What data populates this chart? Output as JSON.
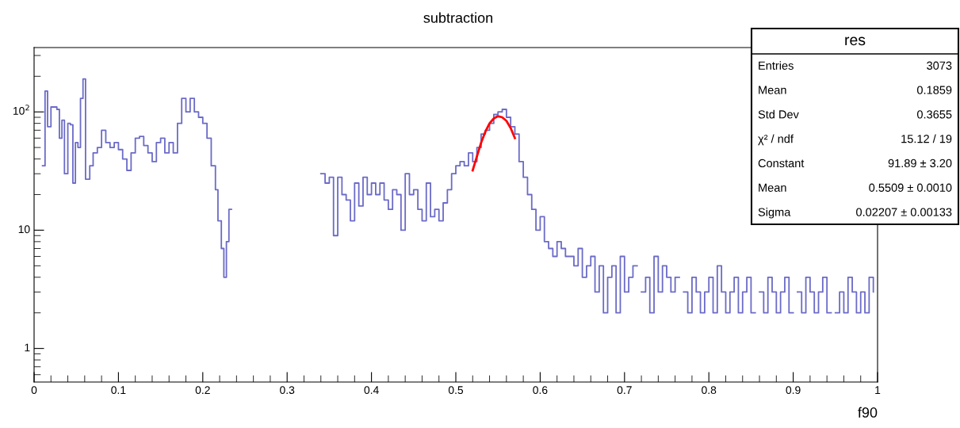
{
  "chart_data": {
    "type": "step",
    "title": "subtraction",
    "xlabel": "f90",
    "xlim": [
      0,
      1
    ],
    "xticks": [
      0,
      0.1,
      0.2,
      0.3,
      0.4,
      0.5,
      0.6,
      0.7,
      0.8,
      0.9,
      1
    ],
    "ylim": [
      0.52,
      350
    ],
    "yticks": [
      {
        "value": 1,
        "label": "1"
      },
      {
        "value": 10,
        "label": "10"
      },
      {
        "value": 100,
        "label": "10$^{2}$"
      }
    ],
    "log": true,
    "grid": false,
    "legend": false,
    "series": [
      {
        "type": "step",
        "color": "#6b6bc8",
        "x": [
          0.01,
          0.013,
          0.016,
          0.02,
          0.027,
          0.03,
          0.033,
          0.036,
          0.04,
          0.043,
          0.046,
          0.049,
          0.052,
          0.055,
          0.058,
          0.061,
          0.066,
          0.07,
          0.075,
          0.08,
          0.085,
          0.09,
          0.095,
          0.1,
          0.105,
          0.11,
          0.115,
          0.12,
          0.125,
          0.13,
          0.135,
          0.14,
          0.145,
          0.15,
          0.155,
          0.16,
          0.165,
          0.17,
          0.175,
          0.18,
          0.185,
          0.19,
          0.195,
          0.2,
          0.205,
          0.21,
          0.215,
          0.218,
          0.222,
          0.225,
          0.228,
          0.231,
          0.234,
          0.34,
          0.345,
          0.35,
          0.355,
          0.36,
          0.365,
          0.37,
          0.375,
          0.38,
          0.385,
          0.39,
          0.395,
          0.4,
          0.405,
          0.41,
          0.415,
          0.42,
          0.425,
          0.43,
          0.435,
          0.44,
          0.445,
          0.45,
          0.455,
          0.46,
          0.465,
          0.47,
          0.475,
          0.48,
          0.485,
          0.49,
          0.495,
          0.5,
          0.505,
          0.51,
          0.515,
          0.52,
          0.525,
          0.53,
          0.535,
          0.54,
          0.545,
          0.55,
          0.555,
          0.56,
          0.565,
          0.57,
          0.575,
          0.58,
          0.585,
          0.59,
          0.595,
          0.6,
          0.605,
          0.61,
          0.615,
          0.62,
          0.625,
          0.63,
          0.64,
          0.645,
          0.65,
          0.655,
          0.66,
          0.665,
          0.67,
          0.675,
          0.68,
          0.685,
          0.69,
          0.695,
          0.7,
          0.705,
          0.71,
          0.715,
          0.72,
          0.725,
          0.73,
          0.735,
          0.74,
          0.745,
          0.75,
          0.755,
          0.76,
          0.765,
          0.77,
          0.775,
          0.78,
          0.785,
          0.79,
          0.795,
          0.8,
          0.805,
          0.81,
          0.815,
          0.82,
          0.825,
          0.83,
          0.835,
          0.84,
          0.845,
          0.85,
          0.855,
          0.86,
          0.865,
          0.87,
          0.875,
          0.88,
          0.885,
          0.89,
          0.895,
          0.9,
          0.905,
          0.91,
          0.915,
          0.92,
          0.925,
          0.93,
          0.935,
          0.94,
          0.945,
          0.95,
          0.955,
          0.96,
          0.965,
          0.97,
          0.975,
          0.98,
          0.985,
          0.99,
          0.995
        ],
        "values": [
          35,
          150,
          75,
          110,
          105,
          60,
          85,
          30,
          80,
          78,
          25,
          55,
          50,
          130,
          190,
          27,
          35,
          45,
          50,
          70,
          55,
          50,
          55,
          48,
          40,
          32,
          45,
          60,
          62,
          52,
          45,
          38,
          55,
          60,
          45,
          55,
          45,
          80,
          130,
          100,
          130,
          100,
          90,
          80,
          60,
          35,
          22,
          12,
          7,
          4,
          8,
          15,
          null,
          30,
          25,
          28,
          9,
          28,
          20,
          18,
          12,
          25,
          16,
          28,
          20,
          25,
          20,
          25,
          18,
          15,
          22,
          20,
          10,
          30,
          20,
          22,
          15,
          12,
          25,
          13,
          15,
          12,
          17,
          22,
          30,
          35,
          38,
          35,
          45,
          38,
          50,
          65,
          70,
          80,
          95,
          100,
          105,
          90,
          75,
          65,
          38,
          28,
          20,
          15,
          10,
          13,
          8,
          7,
          6,
          8,
          7,
          6,
          5,
          7,
          4,
          5,
          6,
          3,
          5,
          2,
          4,
          5,
          2,
          6,
          3,
          4,
          5,
          null,
          3,
          4,
          2,
          6,
          3,
          5,
          4,
          3,
          4,
          null,
          3,
          2,
          4,
          3,
          2,
          3,
          4,
          2,
          5,
          3,
          2,
          3,
          4,
          2,
          3,
          4,
          2,
          null,
          3,
          2,
          4,
          3,
          2,
          3,
          4,
          2,
          null,
          3,
          2,
          4,
          3,
          2,
          3,
          4,
          2,
          null,
          2,
          3,
          2,
          4,
          3,
          2,
          3,
          2,
          4,
          3
        ]
      },
      {
        "type": "line",
        "color": "#ff0000",
        "x": [
          0.52,
          0.525,
          0.53,
          0.535,
          0.54,
          0.545,
          0.55,
          0.555,
          0.56,
          0.565,
          0.57
        ],
        "values": [
          32,
          42,
          55,
          68,
          80,
          88,
          92,
          90,
          84,
          73,
          60
        ]
      }
    ],
    "annotations": [
      "res",
      "Entries",
      "3073",
      "Mean",
      "0.1859",
      "Std Dev",
      "0.3655",
      "χ² / ndf",
      "15.12 / 19",
      "Constant",
      "91.89 ± 3.20",
      "Mean",
      "0.5509 ± 0.0010",
      "Sigma",
      "0.02207 ± 0.00133"
    ]
  }
}
